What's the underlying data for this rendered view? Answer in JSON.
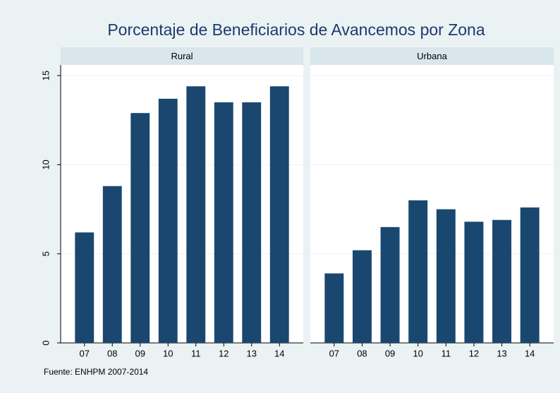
{
  "title": "Porcentaje de Beneficiarios de Avancemos por Zona",
  "note": "Fuente: ENHPM 2007-2014",
  "chart_data": [
    {
      "type": "bar",
      "title": "Rural",
      "categories": [
        "07",
        "08",
        "09",
        "10",
        "11",
        "12",
        "13",
        "14"
      ],
      "values": [
        6.2,
        8.8,
        12.9,
        13.7,
        14.4,
        13.5,
        13.5,
        14.4
      ],
      "color": "#1a476f",
      "ylim": [
        0,
        15.6
      ],
      "yticks": [
        0,
        5,
        10,
        15
      ],
      "grid": true
    },
    {
      "type": "bar",
      "title": "Urbana",
      "categories": [
        "07",
        "08",
        "09",
        "10",
        "11",
        "12",
        "13",
        "14"
      ],
      "values": [
        3.9,
        5.2,
        6.5,
        8.0,
        7.5,
        6.8,
        6.9,
        7.6
      ],
      "color": "#1a476f",
      "ylim": [
        0,
        15.6
      ],
      "yticks": [
        0,
        5,
        10,
        15
      ],
      "grid": true
    }
  ]
}
